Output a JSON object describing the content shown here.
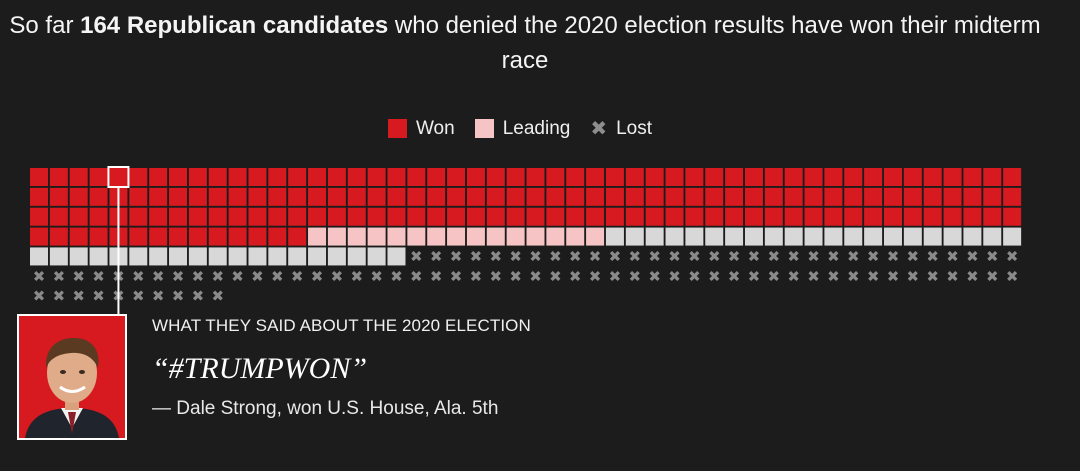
{
  "headline": {
    "prefix": "So far ",
    "bold": "164 Republican candidates",
    "suffix": " who denied the 2020 election results have won their midterm race"
  },
  "legend": {
    "won": "Won",
    "leading": "Leading",
    "lost": "Lost",
    "lost_symbol": "✖"
  },
  "colors": {
    "won": "#d71920",
    "leading": "#f6c4c5",
    "lost_box": "#d8d8d8",
    "lost_x": "#8a8a8a",
    "background": "#1c1c1c"
  },
  "chart_data": {
    "type": "waffle",
    "columns": 50,
    "categories": [
      "Won",
      "Leading",
      "Lost (gray box)",
      "Lost (x)"
    ],
    "values": [
      164,
      15,
      40,
      91
    ],
    "highlighted_candidate_index": 4
  },
  "quote_block": {
    "kicker": "WHAT THEY SAID ABOUT THE 2020 ELECTION",
    "quote": "“#TRUMPWON”",
    "attribution": "— Dale Strong, won U.S. House, Ala. 5th"
  },
  "icons": {
    "lost": "x-icon",
    "photo": "candidate-photo"
  }
}
